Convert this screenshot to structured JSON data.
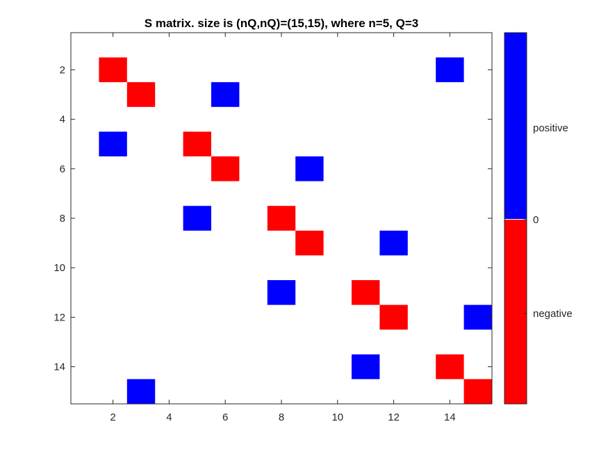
{
  "chart_data": {
    "type": "heatmap",
    "title": "S matrix. size is (nQ,nQ)=(15,15), where n=5, Q=3",
    "xlabel": "",
    "ylabel": "",
    "xlim": [
      0.5,
      15.5
    ],
    "ylim": [
      0.5,
      15.5
    ],
    "y_reversed": true,
    "x_ticks": [
      2,
      4,
      6,
      8,
      10,
      12,
      14
    ],
    "y_ticks": [
      2,
      4,
      6,
      8,
      10,
      12,
      14
    ],
    "grid": false,
    "colors": {
      "negative": "#ff0000",
      "positive": "#0000ff",
      "zero": "#ffffff"
    },
    "cells": [
      {
        "row": 2,
        "col": 2,
        "value": "negative"
      },
      {
        "row": 2,
        "col": 14,
        "value": "positive"
      },
      {
        "row": 3,
        "col": 3,
        "value": "negative"
      },
      {
        "row": 3,
        "col": 6,
        "value": "positive"
      },
      {
        "row": 5,
        "col": 2,
        "value": "positive"
      },
      {
        "row": 5,
        "col": 5,
        "value": "negative"
      },
      {
        "row": 6,
        "col": 6,
        "value": "negative"
      },
      {
        "row": 6,
        "col": 9,
        "value": "positive"
      },
      {
        "row": 8,
        "col": 5,
        "value": "positive"
      },
      {
        "row": 8,
        "col": 8,
        "value": "negative"
      },
      {
        "row": 9,
        "col": 9,
        "value": "negative"
      },
      {
        "row": 9,
        "col": 12,
        "value": "positive"
      },
      {
        "row": 11,
        "col": 8,
        "value": "positive"
      },
      {
        "row": 11,
        "col": 11,
        "value": "negative"
      },
      {
        "row": 12,
        "col": 12,
        "value": "negative"
      },
      {
        "row": 12,
        "col": 15,
        "value": "positive"
      },
      {
        "row": 14,
        "col": 11,
        "value": "positive"
      },
      {
        "row": 14,
        "col": 14,
        "value": "negative"
      },
      {
        "row": 15,
        "col": 3,
        "value": "positive"
      },
      {
        "row": 15,
        "col": 15,
        "value": "negative"
      }
    ],
    "colorbar": {
      "labels": [
        "positive",
        "0",
        "negative"
      ],
      "top_color": "#0000ff",
      "bottom_color": "#ff0000"
    }
  }
}
